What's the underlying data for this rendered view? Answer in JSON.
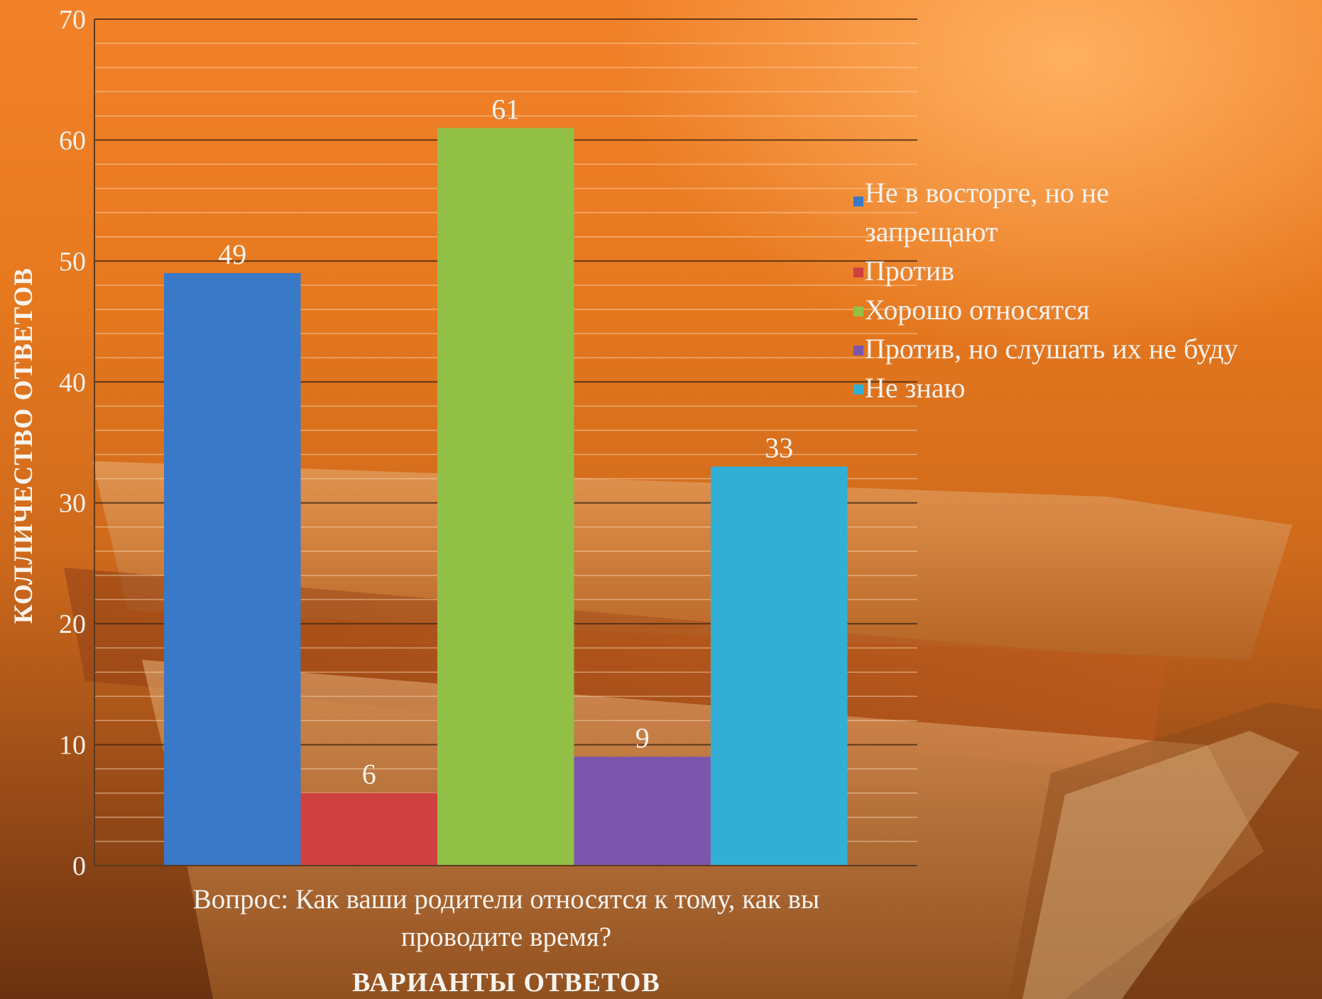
{
  "chart_data": {
    "type": "bar",
    "categories": [
      "Не в восторге, но не запрещают",
      "Против",
      "Хорошо относятся",
      "Против, но слушать их не буду",
      "Не знаю"
    ],
    "values": [
      49,
      6,
      61,
      9,
      33
    ],
    "colors": [
      "#3a78c8",
      "#cf4040",
      "#92c047",
      "#7c55ad",
      "#33afd5"
    ],
    "caption_lines": [
      "Вопрос: Как ваши родители относятся к тому, как вы",
      "проводите время?"
    ],
    "xlabel": "ВАРИАНТЫ ОТВЕТОВ",
    "ylabel": "КОЛЛИЧЕСТВО ОТВЕТОВ",
    "ylim": [
      0,
      70
    ],
    "yticks": [
      0,
      10,
      20,
      30,
      40,
      50,
      60,
      70
    ],
    "grid": true,
    "legend_position": "right",
    "legend": [
      {
        "lines": [
          "Не в восторге, но не",
          "запрещают"
        ]
      },
      {
        "lines": [
          "Против"
        ]
      },
      {
        "lines": [
          "Хорошо относятся"
        ]
      },
      {
        "lines": [
          "Против, но слушать их не буду"
        ]
      },
      {
        "lines": [
          "Не знаю"
        ]
      }
    ]
  }
}
